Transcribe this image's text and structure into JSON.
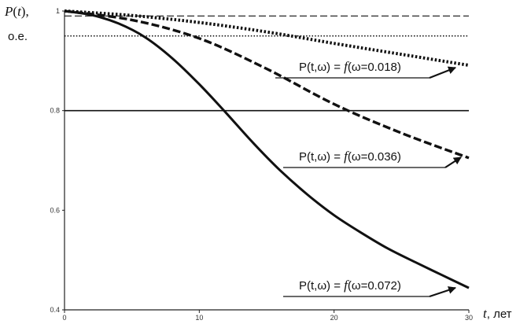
{
  "chart_data": {
    "type": "line",
    "xlabel": "t, лет",
    "xlabel_var": "t",
    "xlabel_unit": ", лет",
    "ylabel_line1": "P(t),",
    "ylabel_var": "P",
    "ylabel_open": "(",
    "ylabel_close": "),",
    "ylabel_line2": "о.е.",
    "xlim": [
      0,
      30
    ],
    "ylim": [
      0.4,
      1.0
    ],
    "x_ticks": [
      "0",
      "10",
      "20",
      "30"
    ],
    "y_ticks": [
      "0.4",
      "0.6",
      "0.8",
      "1"
    ],
    "grid": false,
    "series": [
      {
        "name": "P(t,ω) = f(ω=0.018)",
        "style": "dotted-bold",
        "x": [
          0,
          5,
          10,
          15,
          20,
          25,
          30
        ],
        "y": [
          1.0,
          0.991,
          0.977,
          0.958,
          0.935,
          0.913,
          0.891
        ]
      },
      {
        "name": "P(t,ω) = f(ω=0.036)",
        "style": "dashed-bold",
        "x": [
          0,
          5,
          10,
          15,
          20,
          25,
          30
        ],
        "y": [
          1.0,
          0.982,
          0.945,
          0.884,
          0.813,
          0.755,
          0.705
        ]
      },
      {
        "name": "P(t,ω) = f(ω=0.072)",
        "style": "solid-bold",
        "x": [
          0,
          2,
          4,
          6,
          8,
          10,
          12,
          14,
          16,
          18,
          20,
          22,
          24,
          26,
          28,
          30
        ],
        "y": [
          1.0,
          0.992,
          0.975,
          0.947,
          0.905,
          0.853,
          0.795,
          0.735,
          0.68,
          0.632,
          0.59,
          0.555,
          0.523,
          0.496,
          0.47,
          0.444
        ]
      }
    ],
    "reference_lines": [
      {
        "y": 0.99,
        "style": "dashed-thin"
      },
      {
        "y": 0.95,
        "style": "dotted-thin"
      },
      {
        "y": 0.8,
        "style": "solid-thin"
      }
    ],
    "annotations": [
      {
        "prefix": "P(t,ω) = ",
        "f": "f",
        "suffix": "(ω=0.018)",
        "series": 0
      },
      {
        "prefix": "P(t,ω) = ",
        "f": "f",
        "suffix": "(ω=0.036)",
        "series": 1
      },
      {
        "prefix": "P(t,ω) = ",
        "f": "f",
        "suffix": "(ω=0.072)",
        "series": 2
      }
    ]
  }
}
